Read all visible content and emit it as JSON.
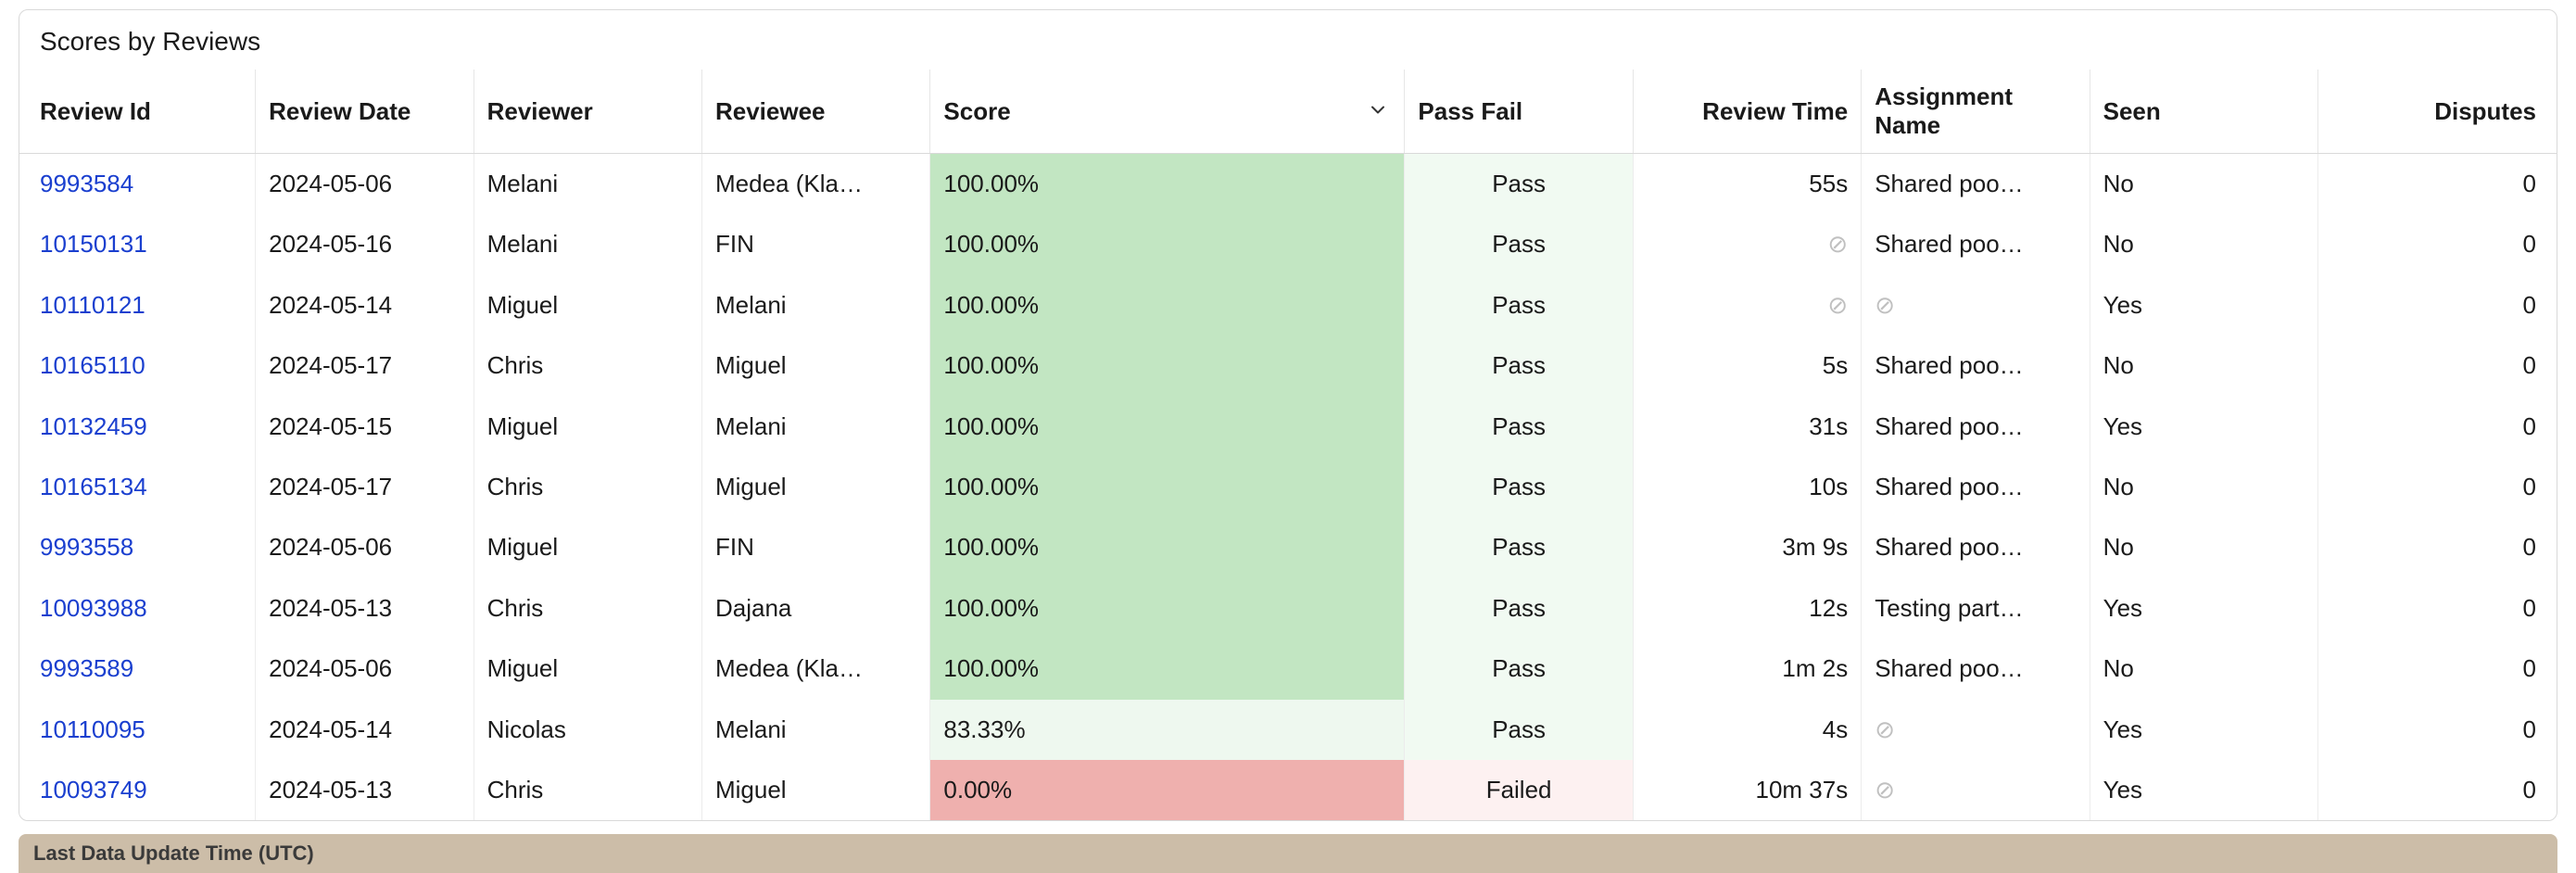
{
  "card_title": "Scores by Reviews",
  "columns": {
    "review_id": {
      "label": "Review Id",
      "width": "9.3%"
    },
    "review_date": {
      "label": "Review Date",
      "width": "8.6%"
    },
    "reviewer": {
      "label": "Reviewer",
      "width": "9.0%"
    },
    "reviewee": {
      "label": "Reviewee",
      "width": "9.0%"
    },
    "score": {
      "label": "Score",
      "width": "18.7%",
      "sorted": "desc"
    },
    "pass_fail": {
      "label": "Pass Fail",
      "width": "9.0%"
    },
    "review_time": {
      "label": "Review Time",
      "width": "9.0%"
    },
    "assignment": {
      "label": "Assignment Name",
      "width": "9.0%"
    },
    "seen": {
      "label": "Seen",
      "width": "9.0%"
    },
    "disputes": {
      "label": "Disputes",
      "width": "9.4%"
    }
  },
  "colors": {
    "score_high_bg": "#c2e6c2",
    "score_mid_bg": "#eef8ef",
    "score_low_bg": "#efb0ae",
    "pass_bg": "#f1faf2",
    "fail_bg": "#fdf1f1",
    "link": "#1a3fcf",
    "empty_glyph": "#c0c0c0"
  },
  "empty_glyph": "⊘",
  "rows": [
    {
      "review_id": "9993584",
      "review_date": "2024-05-06",
      "reviewer": "Melani",
      "reviewee": "Medea (Kla…",
      "score": "100.00%",
      "score_bg_key": "score_high_bg",
      "pass_fail": "Pass",
      "pf_bg_key": "pass_bg",
      "review_time": "55s",
      "assignment": "Shared poo…",
      "seen": "No",
      "disputes": "0"
    },
    {
      "review_id": "10150131",
      "review_date": "2024-05-16",
      "reviewer": "Melani",
      "reviewee": "FIN",
      "score": "100.00%",
      "score_bg_key": "score_high_bg",
      "pass_fail": "Pass",
      "pf_bg_key": "pass_bg",
      "review_time": null,
      "assignment": "Shared poo…",
      "seen": "No",
      "disputes": "0"
    },
    {
      "review_id": "10110121",
      "review_date": "2024-05-14",
      "reviewer": "Miguel",
      "reviewee": "Melani",
      "score": "100.00%",
      "score_bg_key": "score_high_bg",
      "pass_fail": "Pass",
      "pf_bg_key": "pass_bg",
      "review_time": null,
      "assignment": null,
      "seen": "Yes",
      "disputes": "0"
    },
    {
      "review_id": "10165110",
      "review_date": "2024-05-17",
      "reviewer": "Chris",
      "reviewee": "Miguel",
      "score": "100.00%",
      "score_bg_key": "score_high_bg",
      "pass_fail": "Pass",
      "pf_bg_key": "pass_bg",
      "review_time": "5s",
      "assignment": "Shared poo…",
      "seen": "No",
      "disputes": "0"
    },
    {
      "review_id": "10132459",
      "review_date": "2024-05-15",
      "reviewer": "Miguel",
      "reviewee": "Melani",
      "score": "100.00%",
      "score_bg_key": "score_high_bg",
      "pass_fail": "Pass",
      "pf_bg_key": "pass_bg",
      "review_time": "31s",
      "assignment": "Shared poo…",
      "seen": "Yes",
      "disputes": "0"
    },
    {
      "review_id": "10165134",
      "review_date": "2024-05-17",
      "reviewer": "Chris",
      "reviewee": "Miguel",
      "score": "100.00%",
      "score_bg_key": "score_high_bg",
      "pass_fail": "Pass",
      "pf_bg_key": "pass_bg",
      "review_time": "10s",
      "assignment": "Shared poo…",
      "seen": "No",
      "disputes": "0"
    },
    {
      "review_id": "9993558",
      "review_date": "2024-05-06",
      "reviewer": "Miguel",
      "reviewee": "FIN",
      "score": "100.00%",
      "score_bg_key": "score_high_bg",
      "pass_fail": "Pass",
      "pf_bg_key": "pass_bg",
      "review_time": "3m 9s",
      "assignment": "Shared poo…",
      "seen": "No",
      "disputes": "0"
    },
    {
      "review_id": "10093988",
      "review_date": "2024-05-13",
      "reviewer": "Chris",
      "reviewee": "Dajana",
      "score": "100.00%",
      "score_bg_key": "score_high_bg",
      "pass_fail": "Pass",
      "pf_bg_key": "pass_bg",
      "review_time": "12s",
      "assignment": "Testing part…",
      "seen": "Yes",
      "disputes": "0"
    },
    {
      "review_id": "9993589",
      "review_date": "2024-05-06",
      "reviewer": "Miguel",
      "reviewee": "Medea (Kla…",
      "score": "100.00%",
      "score_bg_key": "score_high_bg",
      "pass_fail": "Pass",
      "pf_bg_key": "pass_bg",
      "review_time": "1m 2s",
      "assignment": "Shared poo…",
      "seen": "No",
      "disputes": "0"
    },
    {
      "review_id": "10110095",
      "review_date": "2024-05-14",
      "reviewer": "Nicolas",
      "reviewee": "Melani",
      "score": "83.33%",
      "score_bg_key": "score_mid_bg",
      "pass_fail": "Pass",
      "pf_bg_key": "pass_bg",
      "review_time": "4s",
      "assignment": null,
      "seen": "Yes",
      "disputes": "0"
    },
    {
      "review_id": "10093749",
      "review_date": "2024-05-13",
      "reviewer": "Chris",
      "reviewee": "Miguel",
      "score": "0.00%",
      "score_bg_key": "score_low_bg",
      "pass_fail": "Failed",
      "pf_bg_key": "fail_bg",
      "review_time": "10m 37s",
      "assignment": null,
      "seen": "Yes",
      "disputes": "0"
    }
  ],
  "footer_label": "Last Data Update Time (UTC)"
}
